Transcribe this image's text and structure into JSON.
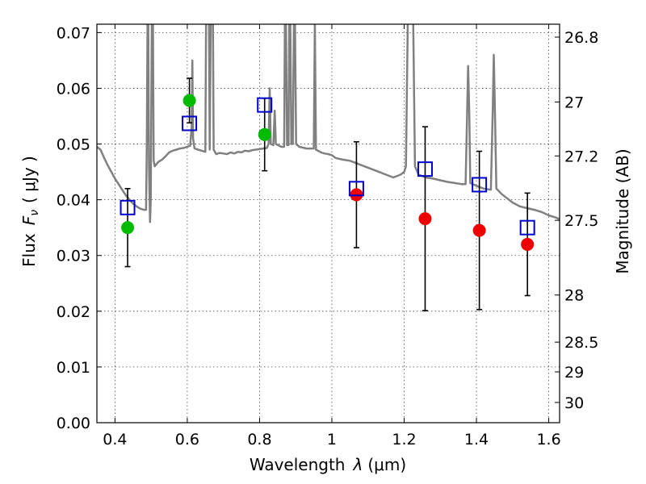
{
  "chart_data": {
    "type": "scatter",
    "xlabel_prefix": "Wavelength",
    "xlabel_symbol": "λ",
    "xlabel_unit": "(μm)",
    "ylabel_prefix": "Flux",
    "ylabel_symbol_main": "F",
    "ylabel_symbol_sub": "ν",
    "ylabel_unit": "( μJy )",
    "ylabel_right": "Magnitude (AB)",
    "xlim": [
      0.35,
      1.63
    ],
    "ylim": [
      0.0,
      0.0715
    ],
    "x_ticks": [
      {
        "value": 0.4,
        "label": "0.4"
      },
      {
        "value": 0.6,
        "label": "0.6"
      },
      {
        "value": 0.8,
        "label": "0.8"
      },
      {
        "value": 1.0,
        "label": "1"
      },
      {
        "value": 1.2,
        "label": "1.2"
      },
      {
        "value": 1.4,
        "label": "1.4"
      },
      {
        "value": 1.6,
        "label": "1.6"
      }
    ],
    "y_ticks": [
      {
        "value": 0.0,
        "label": "0.00"
      },
      {
        "value": 0.01,
        "label": "0.01"
      },
      {
        "value": 0.02,
        "label": "0.02"
      },
      {
        "value": 0.03,
        "label": "0.03"
      },
      {
        "value": 0.04,
        "label": "0.04"
      },
      {
        "value": 0.05,
        "label": "0.05"
      },
      {
        "value": 0.06,
        "label": "0.06"
      },
      {
        "value": 0.07,
        "label": "0.07"
      }
    ],
    "right_ticks": [
      {
        "mag": 26.8,
        "label": "26.8"
      },
      {
        "mag": 27.0,
        "label": "27"
      },
      {
        "mag": 27.2,
        "label": "27.2"
      },
      {
        "mag": 27.5,
        "label": "27.5"
      },
      {
        "mag": 28.0,
        "label": "28"
      },
      {
        "mag": 28.5,
        "label": "28.5"
      },
      {
        "mag": 29.0,
        "label": "29"
      },
      {
        "mag": 30.0,
        "label": "30"
      }
    ],
    "grid": true,
    "colors": {
      "model": "#808080",
      "observed_optical": "#00bb00",
      "observed_nir": "#ee0000",
      "model_photometry": "#0000cc",
      "error_bar": "#000000"
    },
    "observed_optical": [
      {
        "x": 0.435,
        "y": 0.035,
        "err": 0.007
      },
      {
        "x": 0.606,
        "y": 0.0578,
        "err": 0.004
      },
      {
        "x": 0.814,
        "y": 0.0517,
        "err": 0.0065
      }
    ],
    "observed_nir": [
      {
        "x": 1.068,
        "y": 0.0409,
        "err": 0.0095
      },
      {
        "x": 1.258,
        "y": 0.0366,
        "err": 0.0165
      },
      {
        "x": 1.408,
        "y": 0.0345,
        "err": 0.0142
      },
      {
        "x": 1.541,
        "y": 0.032,
        "err": 0.0092
      }
    ],
    "model_photometry": [
      {
        "x": 0.435,
        "y": 0.0386
      },
      {
        "x": 0.606,
        "y": 0.0537
      },
      {
        "x": 0.814,
        "y": 0.057
      },
      {
        "x": 1.068,
        "y": 0.042
      },
      {
        "x": 1.258,
        "y": 0.0455
      },
      {
        "x": 1.408,
        "y": 0.0427
      },
      {
        "x": 1.541,
        "y": 0.035
      }
    ],
    "model_spectrum": [
      [
        0.35,
        0.0495
      ],
      [
        0.36,
        0.049
      ],
      [
        0.37,
        0.0475
      ],
      [
        0.38,
        0.0462
      ],
      [
        0.39,
        0.045
      ],
      [
        0.4,
        0.0438
      ],
      [
        0.41,
        0.0428
      ],
      [
        0.42,
        0.0418
      ],
      [
        0.43,
        0.0408
      ],
      [
        0.44,
        0.04
      ],
      [
        0.45,
        0.0393
      ],
      [
        0.46,
        0.0388
      ],
      [
        0.47,
        0.0384
      ],
      [
        0.48,
        0.0382
      ],
      [
        0.486,
        0.0382
      ],
      [
        0.488,
        0.05
      ],
      [
        0.49,
        0.072
      ],
      [
        0.492,
        0.072
      ],
      [
        0.494,
        0.046
      ],
      [
        0.497,
        0.036
      ],
      [
        0.499,
        0.04
      ],
      [
        0.502,
        0.072
      ],
      [
        0.505,
        0.072
      ],
      [
        0.507,
        0.047
      ],
      [
        0.51,
        0.046
      ],
      [
        0.52,
        0.0468
      ],
      [
        0.53,
        0.0472
      ],
      [
        0.54,
        0.0478
      ],
      [
        0.55,
        0.0485
      ],
      [
        0.56,
        0.0488
      ],
      [
        0.57,
        0.049
      ],
      [
        0.58,
        0.0492
      ],
      [
        0.59,
        0.0493
      ],
      [
        0.6,
        0.0495
      ],
      [
        0.608,
        0.0497
      ],
      [
        0.612,
        0.053
      ],
      [
        0.614,
        0.065
      ],
      [
        0.616,
        0.051
      ],
      [
        0.62,
        0.0492
      ],
      [
        0.63,
        0.049
      ],
      [
        0.64,
        0.0488
      ],
      [
        0.65,
        0.0486
      ],
      [
        0.652,
        0.072
      ],
      [
        0.655,
        0.072
      ],
      [
        0.657,
        0.072
      ],
      [
        0.66,
        0.072
      ],
      [
        0.662,
        0.049
      ],
      [
        0.665,
        0.072
      ],
      [
        0.668,
        0.072
      ],
      [
        0.671,
        0.072
      ],
      [
        0.673,
        0.049
      ],
      [
        0.68,
        0.0482
      ],
      [
        0.69,
        0.0484
      ],
      [
        0.7,
        0.0483
      ],
      [
        0.71,
        0.0482
      ],
      [
        0.72,
        0.0485
      ],
      [
        0.73,
        0.0483
      ],
      [
        0.74,
        0.0486
      ],
      [
        0.75,
        0.0485
      ],
      [
        0.76,
        0.0488
      ],
      [
        0.77,
        0.0487
      ],
      [
        0.78,
        0.0489
      ],
      [
        0.79,
        0.049
      ],
      [
        0.8,
        0.0491
      ],
      [
        0.81,
        0.0492
      ],
      [
        0.82,
        0.0493
      ],
      [
        0.825,
        0.05
      ],
      [
        0.828,
        0.06
      ],
      [
        0.831,
        0.05
      ],
      [
        0.838,
        0.0498
      ],
      [
        0.842,
        0.056
      ],
      [
        0.845,
        0.05
      ],
      [
        0.86,
        0.0495
      ],
      [
        0.868,
        0.0495
      ],
      [
        0.87,
        0.072
      ],
      [
        0.873,
        0.072
      ],
      [
        0.876,
        0.0498
      ],
      [
        0.88,
        0.0498
      ],
      [
        0.882,
        0.072
      ],
      [
        0.885,
        0.072
      ],
      [
        0.888,
        0.05
      ],
      [
        0.892,
        0.05
      ],
      [
        0.895,
        0.072
      ],
      [
        0.898,
        0.072
      ],
      [
        0.901,
        0.05
      ],
      [
        0.91,
        0.0495
      ],
      [
        0.93,
        0.0492
      ],
      [
        0.95,
        0.0492
      ],
      [
        0.953,
        0.072
      ],
      [
        0.956,
        0.049
      ],
      [
        0.97,
        0.0485
      ],
      [
        0.98,
        0.0483
      ],
      [
        0.99,
        0.0482
      ],
      [
        1.0,
        0.048
      ],
      [
        1.01,
        0.0475
      ],
      [
        1.03,
        0.0472
      ],
      [
        1.05,
        0.047
      ],
      [
        1.07,
        0.0465
      ],
      [
        1.09,
        0.046
      ],
      [
        1.11,
        0.0455
      ],
      [
        1.13,
        0.045
      ],
      [
        1.15,
        0.0445
      ],
      [
        1.17,
        0.044
      ],
      [
        1.19,
        0.0445
      ],
      [
        1.2,
        0.045
      ],
      [
        1.205,
        0.046
      ],
      [
        1.21,
        0.072
      ],
      [
        1.225,
        0.072
      ],
      [
        1.23,
        0.046
      ],
      [
        1.24,
        0.0445
      ],
      [
        1.26,
        0.044
      ],
      [
        1.28,
        0.0438
      ],
      [
        1.3,
        0.0435
      ],
      [
        1.32,
        0.0432
      ],
      [
        1.34,
        0.043
      ],
      [
        1.36,
        0.0428
      ],
      [
        1.37,
        0.0428
      ],
      [
        1.374,
        0.055
      ],
      [
        1.377,
        0.064
      ],
      [
        1.38,
        0.056
      ],
      [
        1.383,
        0.043
      ],
      [
        1.4,
        0.0425
      ],
      [
        1.42,
        0.042
      ],
      [
        1.44,
        0.0418
      ],
      [
        1.445,
        0.056
      ],
      [
        1.448,
        0.066
      ],
      [
        1.451,
        0.056
      ],
      [
        1.455,
        0.042
      ],
      [
        1.47,
        0.041
      ],
      [
        1.48,
        0.0405
      ],
      [
        1.5,
        0.0395
      ],
      [
        1.52,
        0.0388
      ],
      [
        1.54,
        0.0385
      ],
      [
        1.56,
        0.0382
      ],
      [
        1.58,
        0.0378
      ],
      [
        1.6,
        0.0372
      ],
      [
        1.62,
        0.0368
      ],
      [
        1.63,
        0.0365
      ]
    ]
  }
}
